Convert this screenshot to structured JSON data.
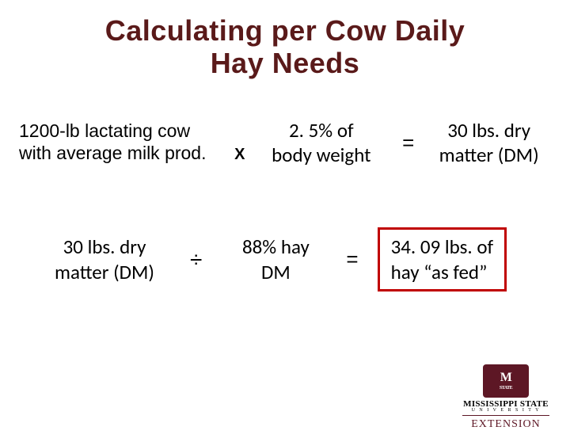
{
  "title_line1": "Calculating per Cow Daily",
  "title_line2": "Hay Needs",
  "eq1": {
    "term1_line1": "1200-lb lactating cow",
    "term1_line2": "with average milk prod.",
    "op1": "X",
    "term2_line1": "2. 5% of",
    "term2_line2": "body weight",
    "op2": "=",
    "term3_line1": "30 lbs. dry",
    "term3_line2": "matter (DM)"
  },
  "eq2": {
    "term1_line1": "30 lbs. dry",
    "term1_line2": "matter (DM)",
    "op1": "÷",
    "term2_line1": "88% hay",
    "term2_line2": "DM",
    "op2": "=",
    "term3_line1": "34. 09 lbs. of",
    "term3_line2": "hay “as fed”"
  },
  "logo": {
    "badge_top": "STATE",
    "uni": "MISSISSIPPI STATE",
    "sub": "U N I V E R S I T Y",
    "ext": "EXTENSION"
  },
  "colors": {
    "title": "#5a1a1a",
    "result_border": "#c00000",
    "maroon": "#5d1725",
    "background": "#ffffff"
  }
}
